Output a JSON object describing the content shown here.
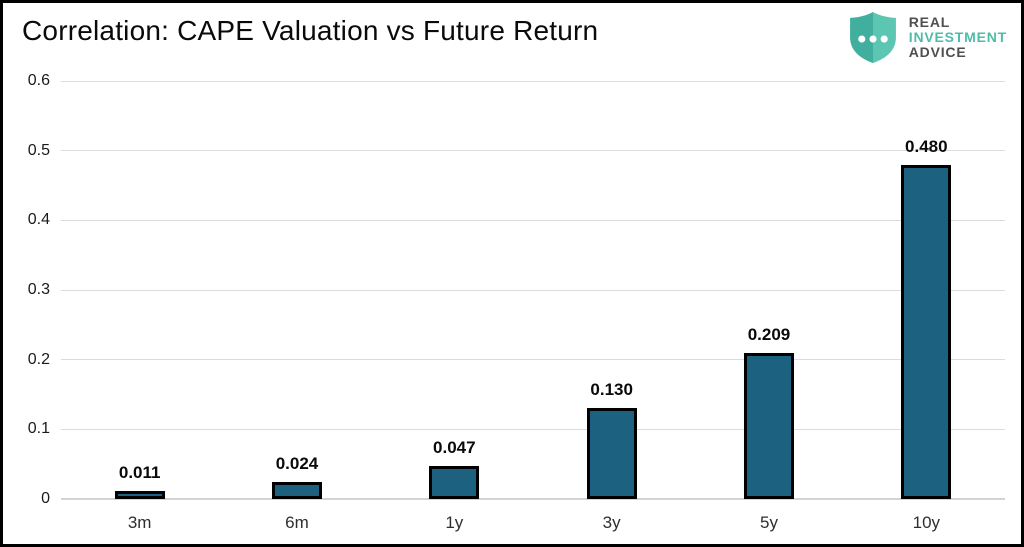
{
  "header": {
    "title": "Correlation: CAPE Valuation vs Future Return"
  },
  "logo": {
    "line1": "REAL",
    "line2": "INVESTMENT",
    "line3": "ADVICE",
    "shield_left_color": "#41af9e",
    "shield_right_color": "#5cc6b2",
    "text_dark_color": "#4f4f4f",
    "text_teal_color": "#4fbcaa"
  },
  "colors": {
    "background": "#ffffff",
    "frame_border": "#000000",
    "bar_fill": "#1d6180",
    "bar_border": "#000000",
    "gridline": "#dcdcdc",
    "title_text": "#0a0a0a"
  },
  "chart_data": {
    "type": "bar",
    "title": "Correlation: CAPE Valuation vs Future Return",
    "categories": [
      "3m",
      "6m",
      "1y",
      "3y",
      "5y",
      "10y"
    ],
    "values": [
      0.011,
      0.024,
      0.047,
      0.13,
      0.209,
      0.48
    ],
    "value_labels": [
      "0.011",
      "0.024",
      "0.047",
      "0.130",
      "0.209",
      "0.480"
    ],
    "xlabel": "",
    "ylabel": "",
    "ylim": [
      0,
      0.6
    ],
    "yticks": [
      0,
      0.1,
      0.2,
      0.3,
      0.4,
      0.5,
      0.6
    ],
    "ytick_labels": [
      "0",
      "0.1",
      "0.2",
      "0.3",
      "0.4",
      "0.5",
      "0.6"
    ],
    "grid": "horizontal",
    "legend": "none",
    "bar_labels_position": "above-bars",
    "bar_label_style": "bold"
  }
}
